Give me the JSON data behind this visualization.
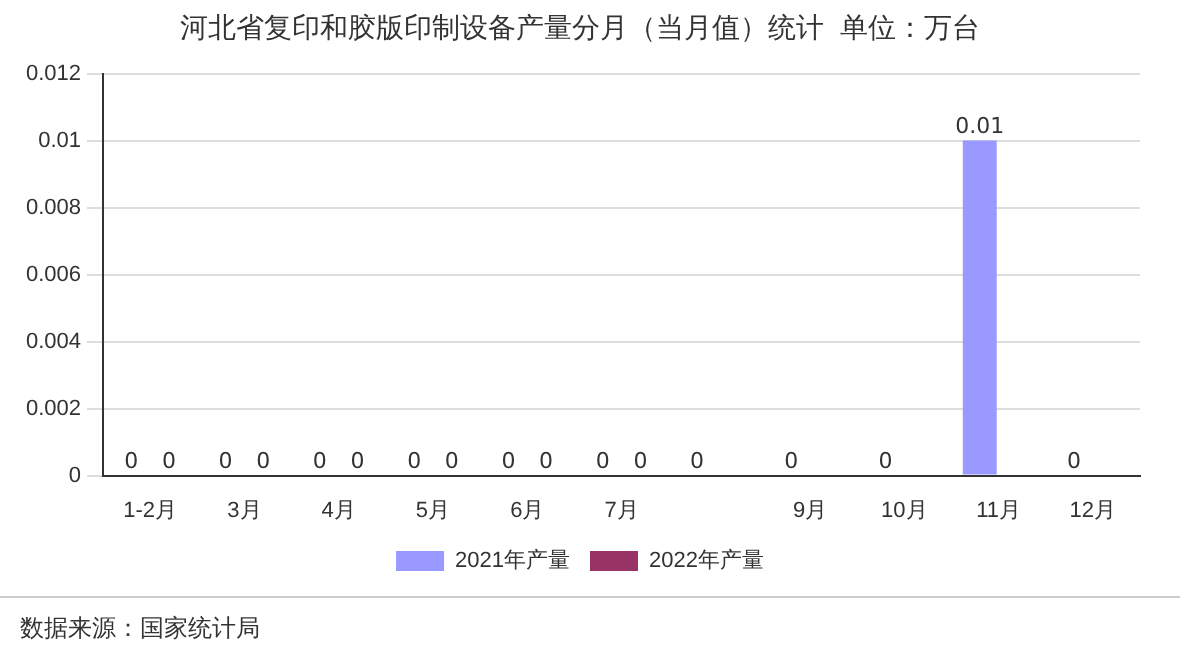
{
  "chart_data": {
    "type": "bar",
    "title": "河北省复印和胶版印制设备产量分月（当月值）统计  单位：万台",
    "categories": [
      "1-2月",
      "3月",
      "4月",
      "5月",
      "6月",
      "7月",
      null,
      "9月",
      "10月",
      "11月",
      "12月"
    ],
    "series": [
      {
        "name": "2021年产量",
        "color": "#9999ff",
        "values": [
          0,
          0,
          0,
          0,
          0,
          0,
          0,
          0,
          0,
          0.01,
          0
        ]
      },
      {
        "name": "2022年产量",
        "color": "#993366",
        "values": [
          0,
          0,
          0,
          0,
          0,
          0,
          null,
          null,
          null,
          null,
          null
        ]
      }
    ],
    "ylim": [
      0,
      0.012
    ],
    "yticks": [
      0,
      0.002,
      0.004,
      0.006,
      0.008,
      0.01,
      0.012
    ],
    "grid": "y",
    "legend": "bottom",
    "data_labels": true,
    "annotations": [
      "数据来源：国家统计局"
    ]
  }
}
